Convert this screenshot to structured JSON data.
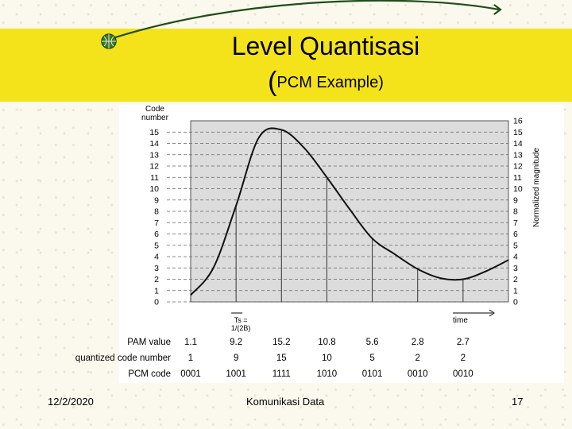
{
  "slide": {
    "title": "Level Quantisasi",
    "subtitle_paren": "(",
    "subtitle_text": "PCM Example)",
    "footer_date": "12/2/2020",
    "footer_center": "Komunikasi Data",
    "footer_page": "17"
  },
  "colors": {
    "band": "#f4e31a",
    "background": "#fbf9ee",
    "grid_fill": "#dcdcdc"
  },
  "icons": [
    "globe-icon",
    "swoosh-decoration"
  ],
  "chart_data": {
    "type": "line",
    "ylabel_left": "Code number",
    "ylabel_right": "Normalized magnitude",
    "xlabel": "time",
    "ylim": [
      0,
      16
    ],
    "left_ticks": [
      "15",
      "14",
      "13",
      "12",
      "11",
      "10",
      "9",
      "8",
      "7",
      "6",
      "5",
      "4",
      "3",
      "2",
      "1",
      "0"
    ],
    "right_ticks": [
      "16",
      "15",
      "14",
      "13",
      "12",
      "11",
      "10",
      "9",
      "8",
      "7",
      "6",
      "5",
      "4",
      "3",
      "2",
      "1",
      "0"
    ],
    "ts_label_line1": "Ts =",
    "ts_label_line2": "1/(2B)",
    "curve": {
      "t": [
        0,
        1,
        2,
        3,
        4,
        5,
        6,
        7,
        8,
        9,
        10,
        11,
        12,
        13,
        14
      ],
      "y": [
        0.6,
        3.0,
        8.5,
        14.5,
        15.2,
        13.6,
        11.0,
        8.2,
        5.6,
        4.2,
        2.9,
        2.1,
        2.0,
        2.7,
        3.7
      ]
    },
    "samples_t": [
      0,
      2,
      4,
      6,
      8,
      10,
      12
    ],
    "table": {
      "rows": [
        {
          "label": "PAM value",
          "values": [
            "1.1",
            "9.2",
            "15.2",
            "10.8",
            "5.6",
            "2.8",
            "2.7"
          ]
        },
        {
          "label": "quantized code number",
          "values": [
            "1",
            "9",
            "15",
            "10",
            "5",
            "2",
            "2"
          ]
        },
        {
          "label": "PCM code",
          "values": [
            "0001",
            "1001",
            "1111",
            "1010",
            "0101",
            "0010",
            "0010"
          ]
        }
      ]
    }
  }
}
